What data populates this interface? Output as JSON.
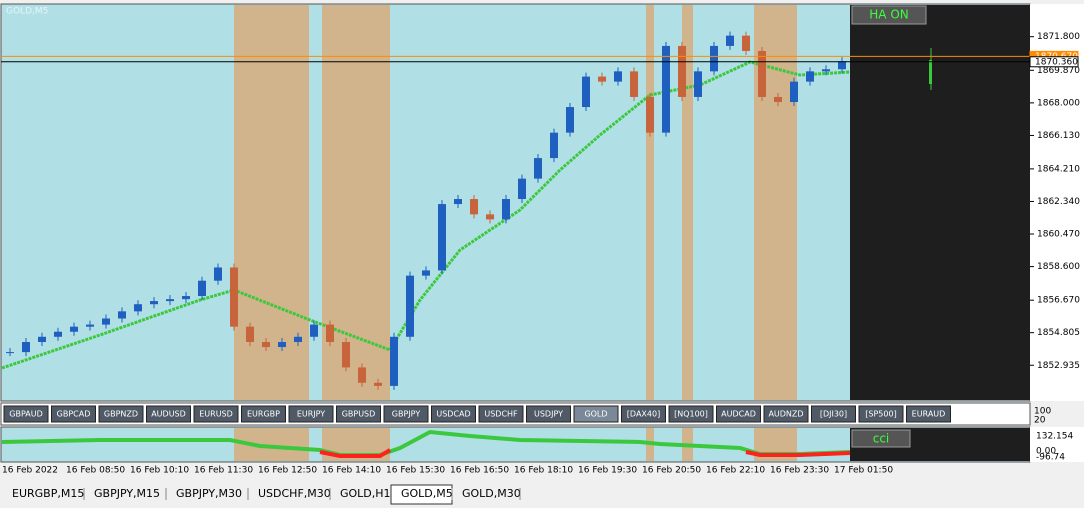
{
  "window_title": "GOLD,M5",
  "chart_data": {
    "type": "candlestick",
    "closes": [
      1853.69,
      1854.27,
      1854.57,
      1854.86,
      1855.15,
      1855.27,
      1855.62,
      1856.03,
      1856.44,
      1856.62,
      1856.73,
      1856.91,
      1857.79,
      1858.55,
      1855.15,
      1854.27,
      1853.98,
      1854.27,
      1854.57,
      1855.27,
      1854.27,
      1852.81,
      1851.93,
      1851.75,
      1854.57,
      1858.08,
      1858.38,
      1862.19,
      1862.48,
      1861.6,
      1861.31,
      1862.48,
      1863.65,
      1864.83,
      1866.29,
      1867.76,
      1869.51,
      1869.22,
      1869.81,
      1868.34,
      1866.29,
      1871.27,
      1868.34,
      1869.81,
      1871.27,
      1871.86,
      1870.98,
      1868.34,
      1868.05,
      1869.22,
      1869.81,
      1869.93,
      1870.39
    ],
    "up_color": "#1f5fbf",
    "down_color": "#c8643c",
    "ylim": [
      1850.94,
      1873.62
    ],
    "yticks": [
      {
        "value": 1871.8,
        "label": "1871.800"
      },
      {
        "value": 1869.87,
        "label": "1869.870"
      },
      {
        "value": 1868.0,
        "label": "1868.000"
      },
      {
        "value": 1866.13,
        "label": "1866.130"
      },
      {
        "value": 1864.21,
        "label": "1864.210"
      },
      {
        "value": 1862.34,
        "label": "1862.340"
      },
      {
        "value": 1860.47,
        "label": "1860.470"
      },
      {
        "value": 1858.6,
        "label": "1858.600"
      },
      {
        "value": 1856.67,
        "label": "1856.670"
      },
      {
        "value": 1854.805,
        "label": "1854.805"
      },
      {
        "value": 1852.935,
        "label": "1852.935"
      }
    ],
    "price_lines": [
      {
        "value": 1870.67,
        "label": "1870.670",
        "color": "#ff8c00"
      },
      {
        "value": 1870.36,
        "label": "1870.360",
        "color": "#000000"
      }
    ],
    "x_labels": [
      "16 Feb 2022",
      "16 Feb 08:50",
      "16 Feb 10:10",
      "16 Feb 11:30",
      "16 Feb 12:50",
      "16 Feb 14:10",
      "16 Feb 15:30",
      "16 Feb 16:50",
      "16 Feb 18:10",
      "16 Feb 19:30",
      "16 Feb 20:50",
      "16 Feb 22:10",
      "16 Feb 23:30",
      "17 Feb 01:50"
    ]
  },
  "ha_button": "HA ON",
  "cci_button": "cci",
  "cci_labels": [
    "132.154",
    "0.00",
    "-96.74"
  ],
  "button_axis_labels": [
    "100",
    "20"
  ],
  "symbols": [
    "GBPAUD",
    "GBPCAD",
    "GBPNZD",
    "AUDUSD",
    "EURUSD",
    "EURGBP",
    "EURJPY",
    "GBPUSD",
    "GBPJPY",
    "USDCAD",
    "USDCHF",
    "USDJPY",
    "GOLD",
    "[DAX40]",
    "[NQ100]",
    "AUDCAD",
    "AUDNZD",
    "[DJI30]",
    "[SP500]",
    "EURAUD"
  ],
  "active_symbol_index": 12,
  "tabs": [
    "EURGBP,M15",
    "GBPJPY,M15",
    "GBPJPY,M30",
    "USDCHF,M30",
    "GOLD,H1",
    "GOLD,M5",
    "GOLD,M30"
  ],
  "active_tab_index": 5
}
